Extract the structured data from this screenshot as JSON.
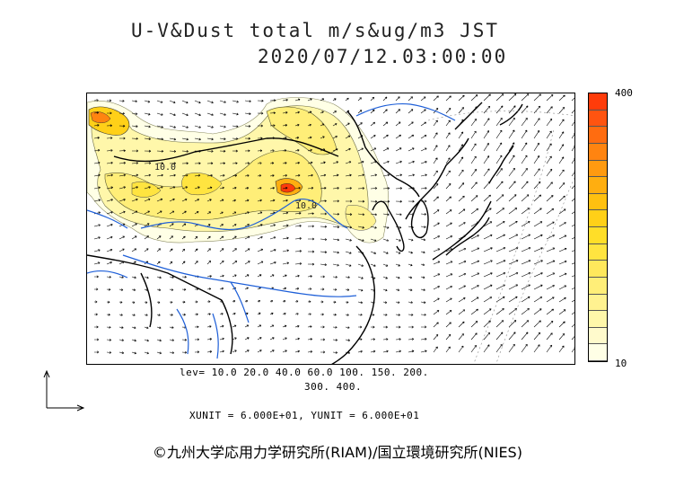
{
  "title": {
    "line1": "U-V&Dust total m/s&ug/m3 JST",
    "line2": "2020/07/12.03:00:00"
  },
  "colorbar": {
    "max_label": "400",
    "min_label": "10",
    "colors": [
      "#ffffe6",
      "#fffacc",
      "#fff7aa",
      "#fff290",
      "#ffee78",
      "#ffe85c",
      "#ffe440",
      "#ffde28",
      "#ffd018",
      "#ffc010",
      "#ffae10",
      "#ff9a10",
      "#ff8410",
      "#ff6c10",
      "#ff5410",
      "#ff3c0a"
    ]
  },
  "contour_levels": {
    "line1": "lev= 10.0 20.0 40.0 60.0 100. 150. 200.",
    "line2": "300. 400."
  },
  "contour_labels": [
    "10.0",
    "10.0"
  ],
  "units": "XUNIT = 6.000E+01, YUNIT = 6.000E+01",
  "credit": "©九州大学応用力学研究所(RIAM)/国立環境研究所(NIES)",
  "colors": {
    "land_line": "#000000",
    "river": "#1e5fd8",
    "contour": "#333333"
  }
}
